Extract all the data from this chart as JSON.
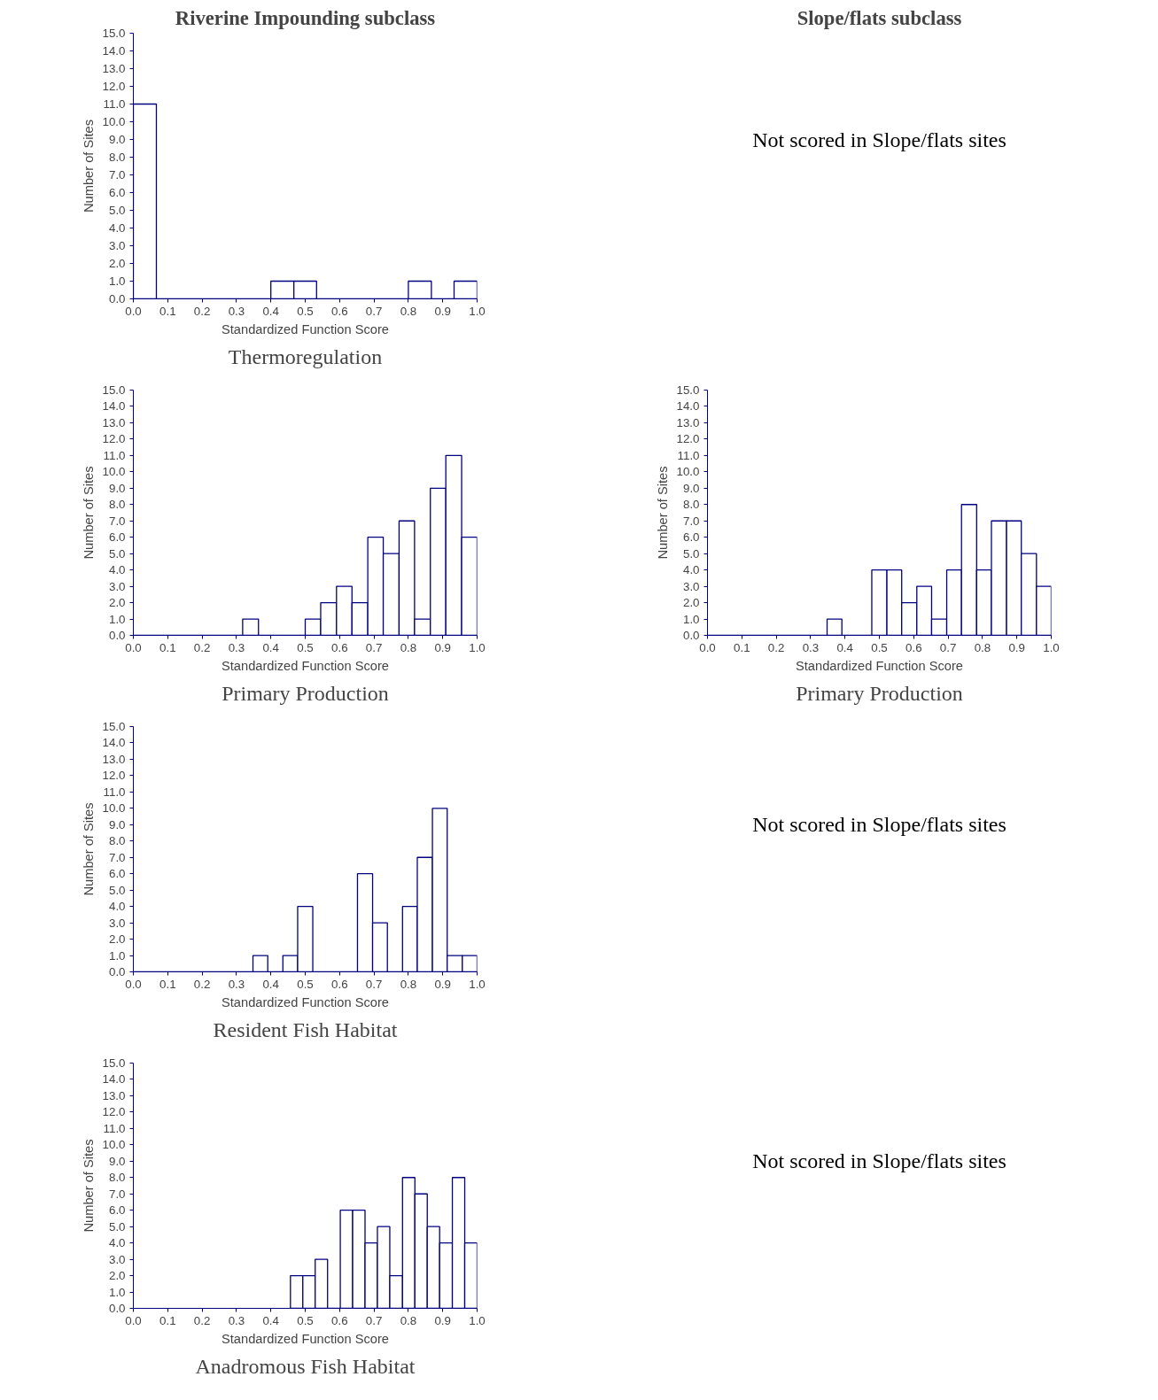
{
  "chart_data": [
    {
      "type": "histogram",
      "subtitle": "Riverine Impounding subclass",
      "title": "Thermoregulation",
      "xlabel": "Standardized Function Score",
      "ylabel": "Number of Sites",
      "color": "#000080",
      "bins": [
        0.0,
        0.067,
        0.133,
        0.2,
        0.267,
        0.333,
        0.4,
        0.467,
        0.533,
        0.6,
        0.667,
        0.733,
        0.8,
        0.867,
        0.933,
        1.0
      ],
      "values": [
        11,
        0,
        0,
        0,
        0,
        0,
        1,
        1,
        0,
        0,
        0,
        0,
        1,
        0,
        1
      ],
      "xlim": [
        0,
        1
      ],
      "ylim": [
        0,
        15
      ],
      "xticks": [
        {
          "value": 0,
          "label": "0.0"
        },
        {
          "value": 0.1,
          "label": "0.1"
        },
        {
          "value": 0.2,
          "label": "0.2"
        },
        {
          "value": 0.3,
          "label": "0.3"
        },
        {
          "value": 0.4,
          "label": "0.4"
        },
        {
          "value": 0.5,
          "label": "0.5"
        },
        {
          "value": 0.6,
          "label": "0.6"
        },
        {
          "value": 0.7,
          "label": "0.7"
        },
        {
          "value": 0.8,
          "label": "0.8"
        },
        {
          "value": 0.9,
          "label": "0.9"
        },
        {
          "value": 1,
          "label": "1.0"
        }
      ],
      "yticks": [
        {
          "value": 0,
          "label": "0.0"
        },
        {
          "value": 1,
          "label": "1.0"
        },
        {
          "value": 2,
          "label": "2.0"
        },
        {
          "value": 3,
          "label": "3.0"
        },
        {
          "value": 4,
          "label": "4.0"
        },
        {
          "value": 5,
          "label": "5.0"
        },
        {
          "value": 6,
          "label": "6.0"
        },
        {
          "value": 7,
          "label": "7.0"
        },
        {
          "value": 8,
          "label": "8.0"
        },
        {
          "value": 9,
          "label": "9.0"
        },
        {
          "value": 10,
          "label": "10.0"
        },
        {
          "value": 11,
          "label": "11.0"
        },
        {
          "value": 12,
          "label": "12.0"
        },
        {
          "value": 13,
          "label": "13.0"
        },
        {
          "value": 14,
          "label": "14.0"
        },
        {
          "value": 15,
          "label": "15.0"
        }
      ]
    },
    {
      "type": "other",
      "subtitle": "Slope/flats subclass",
      "annotations": [
        "Not scored in Slope/flats sites"
      ]
    },
    {
      "type": "histogram",
      "title": "Primary Production",
      "xlabel": "Standardized Function Score",
      "ylabel": "Number of Sites",
      "color": "#000080",
      "bins": [
        0.0,
        0.045,
        0.091,
        0.136,
        0.182,
        0.227,
        0.273,
        0.318,
        0.364,
        0.409,
        0.455,
        0.5,
        0.545,
        0.591,
        0.636,
        0.682,
        0.727,
        0.773,
        0.818,
        0.864,
        0.909,
        0.955,
        1.0
      ],
      "values": [
        0,
        0,
        0,
        0,
        0,
        0,
        0,
        1,
        0,
        0,
        0,
        1,
        2,
        3,
        2,
        6,
        5,
        7,
        1,
        9,
        11,
        6
      ],
      "xlim": [
        0,
        1
      ],
      "ylim": [
        0,
        15
      ],
      "xticks": [
        {
          "value": 0,
          "label": "0.0"
        },
        {
          "value": 0.1,
          "label": "0.1"
        },
        {
          "value": 0.2,
          "label": "0.2"
        },
        {
          "value": 0.3,
          "label": "0.3"
        },
        {
          "value": 0.4,
          "label": "0.4"
        },
        {
          "value": 0.5,
          "label": "0.5"
        },
        {
          "value": 0.6,
          "label": "0.6"
        },
        {
          "value": 0.7,
          "label": "0.7"
        },
        {
          "value": 0.8,
          "label": "0.8"
        },
        {
          "value": 0.9,
          "label": "0.9"
        },
        {
          "value": 1,
          "label": "1.0"
        }
      ],
      "yticks": [
        {
          "value": 0,
          "label": "0.0"
        },
        {
          "value": 1,
          "label": "1.0"
        },
        {
          "value": 2,
          "label": "2.0"
        },
        {
          "value": 3,
          "label": "3.0"
        },
        {
          "value": 4,
          "label": "4.0"
        },
        {
          "value": 5,
          "label": "5.0"
        },
        {
          "value": 6,
          "label": "6.0"
        },
        {
          "value": 7,
          "label": "7.0"
        },
        {
          "value": 8,
          "label": "8.0"
        },
        {
          "value": 9,
          "label": "9.0"
        },
        {
          "value": 10,
          "label": "10.0"
        },
        {
          "value": 11,
          "label": "11.0"
        },
        {
          "value": 12,
          "label": "12.0"
        },
        {
          "value": 13,
          "label": "13.0"
        },
        {
          "value": 14,
          "label": "14.0"
        },
        {
          "value": 15,
          "label": "15.0"
        }
      ]
    },
    {
      "type": "histogram",
      "title": "Primary Production",
      "xlabel": "Standardized Function Score",
      "ylabel": "Number of Sites",
      "color": "#000080",
      "bins": [
        0.0,
        0.043,
        0.087,
        0.13,
        0.174,
        0.217,
        0.261,
        0.304,
        0.348,
        0.391,
        0.435,
        0.478,
        0.522,
        0.565,
        0.609,
        0.652,
        0.696,
        0.739,
        0.783,
        0.826,
        0.87,
        0.913,
        0.957,
        1.0
      ],
      "values": [
        0,
        0,
        0,
        0,
        0,
        0,
        0,
        0,
        1,
        0,
        0,
        4,
        4,
        2,
        3,
        1,
        4,
        8,
        4,
        7,
        7,
        5,
        3
      ],
      "xlim": [
        0,
        1
      ],
      "ylim": [
        0,
        15
      ],
      "xticks": [
        {
          "value": 0,
          "label": "0.0"
        },
        {
          "value": 0.1,
          "label": "0.1"
        },
        {
          "value": 0.2,
          "label": "0.2"
        },
        {
          "value": 0.3,
          "label": "0.3"
        },
        {
          "value": 0.4,
          "label": "0.4"
        },
        {
          "value": 0.5,
          "label": "0.5"
        },
        {
          "value": 0.6,
          "label": "0.6"
        },
        {
          "value": 0.7,
          "label": "0.7"
        },
        {
          "value": 0.8,
          "label": "0.8"
        },
        {
          "value": 0.9,
          "label": "0.9"
        },
        {
          "value": 1,
          "label": "1.0"
        }
      ],
      "yticks": [
        {
          "value": 0,
          "label": "0.0"
        },
        {
          "value": 1,
          "label": "1.0"
        },
        {
          "value": 2,
          "label": "2.0"
        },
        {
          "value": 3,
          "label": "3.0"
        },
        {
          "value": 4,
          "label": "4.0"
        },
        {
          "value": 5,
          "label": "5.0"
        },
        {
          "value": 6,
          "label": "6.0"
        },
        {
          "value": 7,
          "label": "7.0"
        },
        {
          "value": 8,
          "label": "8.0"
        },
        {
          "value": 9,
          "label": "9.0"
        },
        {
          "value": 10,
          "label": "10.0"
        },
        {
          "value": 11,
          "label": "11.0"
        },
        {
          "value": 12,
          "label": "12.0"
        },
        {
          "value": 13,
          "label": "13.0"
        },
        {
          "value": 14,
          "label": "14.0"
        },
        {
          "value": 15,
          "label": "15.0"
        }
      ]
    },
    {
      "type": "histogram",
      "title": "Resident Fish Habitat",
      "xlabel": "Standardized Function Score",
      "ylabel": "Number of Sites",
      "color": "#000080",
      "bins": [
        0.0,
        0.043,
        0.087,
        0.13,
        0.174,
        0.217,
        0.261,
        0.304,
        0.348,
        0.391,
        0.435,
        0.478,
        0.522,
        0.565,
        0.609,
        0.652,
        0.696,
        0.739,
        0.783,
        0.826,
        0.87,
        0.913,
        0.957,
        1.0
      ],
      "values": [
        0,
        0,
        0,
        0,
        0,
        0,
        0,
        0,
        1,
        0,
        1,
        4,
        0,
        0,
        0,
        6,
        3,
        0,
        4,
        7,
        10,
        1,
        1
      ],
      "xlim": [
        0,
        1
      ],
      "ylim": [
        0,
        15
      ],
      "xticks": [
        {
          "value": 0,
          "label": "0.0"
        },
        {
          "value": 0.1,
          "label": "0.1"
        },
        {
          "value": 0.2,
          "label": "0.2"
        },
        {
          "value": 0.3,
          "label": "0.3"
        },
        {
          "value": 0.4,
          "label": "0.4"
        },
        {
          "value": 0.5,
          "label": "0.5"
        },
        {
          "value": 0.6,
          "label": "0.6"
        },
        {
          "value": 0.7,
          "label": "0.7"
        },
        {
          "value": 0.8,
          "label": "0.8"
        },
        {
          "value": 0.9,
          "label": "0.9"
        },
        {
          "value": 1,
          "label": "1.0"
        }
      ],
      "yticks": [
        {
          "value": 0,
          "label": "0.0"
        },
        {
          "value": 1,
          "label": "1.0"
        },
        {
          "value": 2,
          "label": "2.0"
        },
        {
          "value": 3,
          "label": "3.0"
        },
        {
          "value": 4,
          "label": "4.0"
        },
        {
          "value": 5,
          "label": "5.0"
        },
        {
          "value": 6,
          "label": "6.0"
        },
        {
          "value": 7,
          "label": "7.0"
        },
        {
          "value": 8,
          "label": "8.0"
        },
        {
          "value": 9,
          "label": "9.0"
        },
        {
          "value": 10,
          "label": "10.0"
        },
        {
          "value": 11,
          "label": "11.0"
        },
        {
          "value": 12,
          "label": "12.0"
        },
        {
          "value": 13,
          "label": "13.0"
        },
        {
          "value": 14,
          "label": "14.0"
        },
        {
          "value": 15,
          "label": "15.0"
        }
      ]
    },
    {
      "type": "other",
      "annotations": [
        "Not scored in Slope/flats sites"
      ]
    },
    {
      "type": "histogram",
      "title": "Anadromous Fish Habitat",
      "xlabel": "Standardized Function Score",
      "ylabel": "Number of Sites",
      "color": "#000080",
      "bins": [
        0.457,
        0.493,
        0.529,
        0.565,
        0.602,
        0.638,
        0.674,
        0.71,
        0.746,
        0.783,
        0.819,
        0.855,
        0.891,
        0.928,
        0.964,
        1.0
      ],
      "values": [
        2,
        2,
        3,
        0,
        6,
        6,
        4,
        5,
        2,
        8,
        7,
        5,
        4,
        8,
        4
      ],
      "xlim": [
        0,
        1
      ],
      "ylim": [
        0,
        15
      ],
      "xticks": [
        {
          "value": 0,
          "label": "0.0"
        },
        {
          "value": 0.1,
          "label": "0.1"
        },
        {
          "value": 0.2,
          "label": "0.2"
        },
        {
          "value": 0.3,
          "label": "0.3"
        },
        {
          "value": 0.4,
          "label": "0.4"
        },
        {
          "value": 0.5,
          "label": "0.5"
        },
        {
          "value": 0.6,
          "label": "0.6"
        },
        {
          "value": 0.7,
          "label": "0.7"
        },
        {
          "value": 0.8,
          "label": "0.8"
        },
        {
          "value": 0.9,
          "label": "0.9"
        },
        {
          "value": 1,
          "label": "1.0"
        }
      ],
      "yticks": [
        {
          "value": 0,
          "label": "0.0"
        },
        {
          "value": 1,
          "label": "1.0"
        },
        {
          "value": 2,
          "label": "2.0"
        },
        {
          "value": 3,
          "label": "3.0"
        },
        {
          "value": 4,
          "label": "4.0"
        },
        {
          "value": 5,
          "label": "5.0"
        },
        {
          "value": 6,
          "label": "6.0"
        },
        {
          "value": 7,
          "label": "7.0"
        },
        {
          "value": 8,
          "label": "8.0"
        },
        {
          "value": 9,
          "label": "9.0"
        },
        {
          "value": 10,
          "label": "10.0"
        },
        {
          "value": 11,
          "label": "11.0"
        },
        {
          "value": 12,
          "label": "12.0"
        },
        {
          "value": 13,
          "label": "13.0"
        },
        {
          "value": 14,
          "label": "14.0"
        },
        {
          "value": 15,
          "label": "15.0"
        }
      ]
    },
    {
      "type": "other",
      "annotations": [
        "Not scored in Slope/flats sites"
      ]
    }
  ]
}
